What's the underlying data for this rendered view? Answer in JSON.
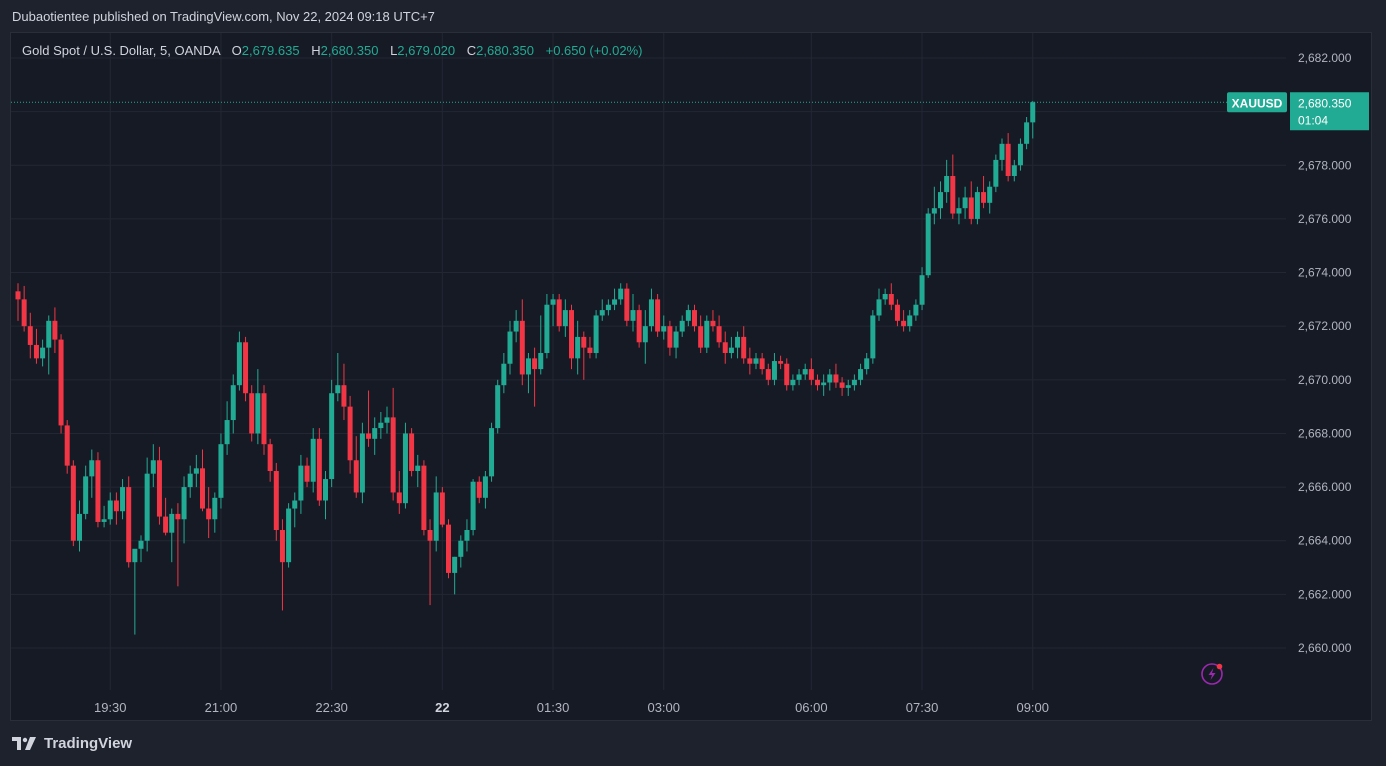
{
  "header": {
    "published": "Dubaotientee published on TradingView.com, Nov 22, 2024 09:18 UTC+7"
  },
  "legend": {
    "instrument": "Gold Spot / U.S. Dollar, 5, OANDA",
    "o_label": "O",
    "o_value": "2,679.635",
    "h_label": "H",
    "h_value": "2,680.350",
    "l_label": "L",
    "l_value": "2,679.020",
    "c_label": "C",
    "c_value": "2,680.350",
    "change": "+0.650 (+0.02%)"
  },
  "price_tag": {
    "symbol": "XAUUSD",
    "price": "2,680.350",
    "countdown": "01:04"
  },
  "footer": {
    "brand": "TradingView"
  },
  "colors": {
    "up": "#22ab94",
    "down": "#f23645",
    "background": "#161a25",
    "grid": "#232733",
    "axis_text": "#b2b5be"
  },
  "icons": [
    "tradingview-logo-icon",
    "lightning-icon"
  ],
  "chart_data": {
    "type": "candlestick",
    "interval": "5",
    "ylim": [
      2658.5,
      2683.5
    ],
    "y_ticks": [
      "2,682.000",
      "2,680.000",
      "2,678.000",
      "2,676.000",
      "2,674.000",
      "2,672.000",
      "2,670.000",
      "2,668.000",
      "2,666.000",
      "2,664.000",
      "2,662.000",
      "2,660.000"
    ],
    "y_tick_values": [
      2682,
      2680,
      2678,
      2676,
      2674,
      2672,
      2670,
      2668,
      2666,
      2664,
      2662,
      2660
    ],
    "x_ticks": [
      {
        "label": "19:30",
        "bar": 15,
        "bold": false
      },
      {
        "label": "21:00",
        "bar": 33,
        "bold": false
      },
      {
        "label": "22:30",
        "bar": 51,
        "bold": false
      },
      {
        "label": "22",
        "bar": 69,
        "bold": true
      },
      {
        "label": "01:30",
        "bar": 87,
        "bold": false
      },
      {
        "label": "03:00",
        "bar": 105,
        "bold": false
      },
      {
        "label": "06:00",
        "bar": 129,
        "bold": false
      },
      {
        "label": "07:30",
        "bar": 147,
        "bold": false
      },
      {
        "label": "09:00",
        "bar": 165,
        "bold": false
      }
    ],
    "last_price": 2680.35,
    "candles": [
      {
        "o": 2673.3,
        "h": 2673.6,
        "l": 2672.2,
        "c": 2673.0
      },
      {
        "o": 2673.0,
        "h": 2673.5,
        "l": 2671.8,
        "c": 2672.0
      },
      {
        "o": 2672.0,
        "h": 2672.5,
        "l": 2670.8,
        "c": 2671.3
      },
      {
        "o": 2671.3,
        "h": 2671.9,
        "l": 2670.6,
        "c": 2670.8
      },
      {
        "o": 2670.8,
        "h": 2671.5,
        "l": 2670.5,
        "c": 2671.2
      },
      {
        "o": 2671.2,
        "h": 2672.4,
        "l": 2670.2,
        "c": 2672.2
      },
      {
        "o": 2672.2,
        "h": 2672.7,
        "l": 2671.0,
        "c": 2671.5
      },
      {
        "o": 2671.5,
        "h": 2671.7,
        "l": 2668.0,
        "c": 2668.3
      },
      {
        "o": 2668.3,
        "h": 2668.5,
        "l": 2666.5,
        "c": 2666.8
      },
      {
        "o": 2666.8,
        "h": 2667.0,
        "l": 2663.8,
        "c": 2664.0
      },
      {
        "o": 2664.0,
        "h": 2665.5,
        "l": 2663.6,
        "c": 2665.0
      },
      {
        "o": 2665.0,
        "h": 2666.8,
        "l": 2664.8,
        "c": 2666.4
      },
      {
        "o": 2666.4,
        "h": 2667.4,
        "l": 2665.6,
        "c": 2667.0
      },
      {
        "o": 2667.0,
        "h": 2667.3,
        "l": 2664.5,
        "c": 2664.7
      },
      {
        "o": 2664.7,
        "h": 2665.3,
        "l": 2664.5,
        "c": 2664.8
      },
      {
        "o": 2664.8,
        "h": 2665.8,
        "l": 2664.6,
        "c": 2665.5
      },
      {
        "o": 2665.5,
        "h": 2665.8,
        "l": 2664.6,
        "c": 2665.1
      },
      {
        "o": 2665.1,
        "h": 2666.3,
        "l": 2664.8,
        "c": 2666.0
      },
      {
        "o": 2666.0,
        "h": 2666.4,
        "l": 2663.0,
        "c": 2663.2
      },
      {
        "o": 2663.2,
        "h": 2663.6,
        "l": 2660.5,
        "c": 2663.7
      },
      {
        "o": 2663.7,
        "h": 2664.2,
        "l": 2663.2,
        "c": 2664.0
      },
      {
        "o": 2664.0,
        "h": 2667.1,
        "l": 2663.6,
        "c": 2666.5
      },
      {
        "o": 2666.5,
        "h": 2667.6,
        "l": 2666.0,
        "c": 2667.0
      },
      {
        "o": 2667.0,
        "h": 2667.5,
        "l": 2664.6,
        "c": 2664.9
      },
      {
        "o": 2664.9,
        "h": 2665.6,
        "l": 2664.2,
        "c": 2664.3
      },
      {
        "o": 2664.3,
        "h": 2665.2,
        "l": 2663.2,
        "c": 2665.0
      },
      {
        "o": 2665.0,
        "h": 2665.4,
        "l": 2662.3,
        "c": 2664.8
      },
      {
        "o": 2664.8,
        "h": 2666.4,
        "l": 2663.9,
        "c": 2666.0
      },
      {
        "o": 2666.0,
        "h": 2666.8,
        "l": 2665.6,
        "c": 2666.5
      },
      {
        "o": 2666.5,
        "h": 2667.2,
        "l": 2666.0,
        "c": 2666.7
      },
      {
        "o": 2666.7,
        "h": 2667.4,
        "l": 2665.1,
        "c": 2665.2
      },
      {
        "o": 2665.2,
        "h": 2666.0,
        "l": 2664.1,
        "c": 2664.8
      },
      {
        "o": 2664.8,
        "h": 2665.8,
        "l": 2664.3,
        "c": 2665.6
      },
      {
        "o": 2665.6,
        "h": 2668.0,
        "l": 2665.2,
        "c": 2667.6
      },
      {
        "o": 2667.6,
        "h": 2669.2,
        "l": 2667.2,
        "c": 2668.5
      },
      {
        "o": 2668.5,
        "h": 2670.2,
        "l": 2668.0,
        "c": 2669.8
      },
      {
        "o": 2669.8,
        "h": 2671.8,
        "l": 2669.6,
        "c": 2671.4
      },
      {
        "o": 2671.4,
        "h": 2671.6,
        "l": 2669.2,
        "c": 2669.5
      },
      {
        "o": 2669.5,
        "h": 2669.8,
        "l": 2667.7,
        "c": 2668.0
      },
      {
        "o": 2668.0,
        "h": 2670.4,
        "l": 2667.6,
        "c": 2669.5
      },
      {
        "o": 2669.5,
        "h": 2669.8,
        "l": 2667.2,
        "c": 2667.6
      },
      {
        "o": 2667.6,
        "h": 2667.8,
        "l": 2666.2,
        "c": 2666.6
      },
      {
        "o": 2666.6,
        "h": 2666.9,
        "l": 2664.0,
        "c": 2664.4
      },
      {
        "o": 2664.4,
        "h": 2664.8,
        "l": 2661.4,
        "c": 2663.2
      },
      {
        "o": 2663.2,
        "h": 2665.4,
        "l": 2663.0,
        "c": 2665.2
      },
      {
        "o": 2665.2,
        "h": 2665.8,
        "l": 2664.5,
        "c": 2665.5
      },
      {
        "o": 2665.5,
        "h": 2667.2,
        "l": 2665.0,
        "c": 2666.8
      },
      {
        "o": 2666.8,
        "h": 2667.1,
        "l": 2666.0,
        "c": 2666.2
      },
      {
        "o": 2666.2,
        "h": 2668.2,
        "l": 2665.8,
        "c": 2667.8
      },
      {
        "o": 2667.8,
        "h": 2668.2,
        "l": 2665.3,
        "c": 2665.5
      },
      {
        "o": 2665.5,
        "h": 2666.6,
        "l": 2664.8,
        "c": 2666.3
      },
      {
        "o": 2666.3,
        "h": 2670.0,
        "l": 2666.0,
        "c": 2669.5
      },
      {
        "o": 2669.5,
        "h": 2671.0,
        "l": 2669.2,
        "c": 2669.8
      },
      {
        "o": 2669.8,
        "h": 2670.6,
        "l": 2668.5,
        "c": 2669.0
      },
      {
        "o": 2669.0,
        "h": 2669.4,
        "l": 2666.5,
        "c": 2667.0
      },
      {
        "o": 2667.0,
        "h": 2667.9,
        "l": 2665.6,
        "c": 2665.8
      },
      {
        "o": 2665.8,
        "h": 2668.4,
        "l": 2665.4,
        "c": 2668.0
      },
      {
        "o": 2668.0,
        "h": 2669.6,
        "l": 2667.5,
        "c": 2667.8
      },
      {
        "o": 2667.8,
        "h": 2668.6,
        "l": 2667.2,
        "c": 2668.2
      },
      {
        "o": 2668.2,
        "h": 2668.8,
        "l": 2667.8,
        "c": 2668.4
      },
      {
        "o": 2668.4,
        "h": 2669.0,
        "l": 2668.0,
        "c": 2668.6
      },
      {
        "o": 2668.6,
        "h": 2669.7,
        "l": 2665.5,
        "c": 2665.8
      },
      {
        "o": 2665.8,
        "h": 2666.6,
        "l": 2665.0,
        "c": 2665.4
      },
      {
        "o": 2665.4,
        "h": 2668.4,
        "l": 2665.2,
        "c": 2668.0
      },
      {
        "o": 2668.0,
        "h": 2668.2,
        "l": 2666.4,
        "c": 2666.6
      },
      {
        "o": 2666.6,
        "h": 2667.2,
        "l": 2666.0,
        "c": 2666.8
      },
      {
        "o": 2666.8,
        "h": 2667.0,
        "l": 2664.2,
        "c": 2664.4
      },
      {
        "o": 2664.4,
        "h": 2664.8,
        "l": 2661.6,
        "c": 2664.0
      },
      {
        "o": 2664.0,
        "h": 2666.4,
        "l": 2663.6,
        "c": 2665.8
      },
      {
        "o": 2665.8,
        "h": 2666.0,
        "l": 2664.5,
        "c": 2664.6
      },
      {
        "o": 2664.6,
        "h": 2664.8,
        "l": 2662.6,
        "c": 2662.8
      },
      {
        "o": 2662.8,
        "h": 2663.4,
        "l": 2662.0,
        "c": 2663.4
      },
      {
        "o": 2663.4,
        "h": 2664.2,
        "l": 2663.0,
        "c": 2664.0
      },
      {
        "o": 2664.0,
        "h": 2664.8,
        "l": 2663.6,
        "c": 2664.4
      },
      {
        "o": 2664.4,
        "h": 2666.3,
        "l": 2664.2,
        "c": 2666.2
      },
      {
        "o": 2666.2,
        "h": 2666.4,
        "l": 2665.4,
        "c": 2665.6
      },
      {
        "o": 2665.6,
        "h": 2666.6,
        "l": 2665.2,
        "c": 2666.4
      },
      {
        "o": 2666.4,
        "h": 2668.4,
        "l": 2666.2,
        "c": 2668.2
      },
      {
        "o": 2668.2,
        "h": 2670.0,
        "l": 2668.0,
        "c": 2669.8
      },
      {
        "o": 2669.8,
        "h": 2671.0,
        "l": 2669.5,
        "c": 2670.6
      },
      {
        "o": 2670.6,
        "h": 2672.2,
        "l": 2670.2,
        "c": 2671.8
      },
      {
        "o": 2671.8,
        "h": 2672.6,
        "l": 2671.4,
        "c": 2672.2
      },
      {
        "o": 2672.2,
        "h": 2673.0,
        "l": 2669.8,
        "c": 2670.2
      },
      {
        "o": 2670.2,
        "h": 2671.0,
        "l": 2669.5,
        "c": 2670.8
      },
      {
        "o": 2670.8,
        "h": 2671.2,
        "l": 2669.0,
        "c": 2670.4
      },
      {
        "o": 2670.4,
        "h": 2672.4,
        "l": 2670.2,
        "c": 2671.0
      },
      {
        "o": 2671.0,
        "h": 2673.2,
        "l": 2670.8,
        "c": 2672.8
      },
      {
        "o": 2672.8,
        "h": 2673.2,
        "l": 2672.0,
        "c": 2673.0
      },
      {
        "o": 2673.0,
        "h": 2673.2,
        "l": 2671.8,
        "c": 2672.0
      },
      {
        "o": 2672.0,
        "h": 2673.0,
        "l": 2671.6,
        "c": 2672.6
      },
      {
        "o": 2672.6,
        "h": 2672.8,
        "l": 2670.4,
        "c": 2670.8
      },
      {
        "o": 2670.8,
        "h": 2672.2,
        "l": 2670.2,
        "c": 2671.6
      },
      {
        "o": 2671.6,
        "h": 2671.8,
        "l": 2670.0,
        "c": 2671.2
      },
      {
        "o": 2671.2,
        "h": 2671.6,
        "l": 2670.8,
        "c": 2671.0
      },
      {
        "o": 2671.0,
        "h": 2672.6,
        "l": 2670.8,
        "c": 2672.4
      },
      {
        "o": 2672.4,
        "h": 2673.0,
        "l": 2672.2,
        "c": 2672.6
      },
      {
        "o": 2672.6,
        "h": 2673.0,
        "l": 2672.4,
        "c": 2672.8
      },
      {
        "o": 2672.8,
        "h": 2673.4,
        "l": 2672.6,
        "c": 2673.0
      },
      {
        "o": 2673.0,
        "h": 2673.6,
        "l": 2672.8,
        "c": 2673.4
      },
      {
        "o": 2673.4,
        "h": 2673.6,
        "l": 2672.0,
        "c": 2672.2
      },
      {
        "o": 2672.2,
        "h": 2673.2,
        "l": 2671.8,
        "c": 2672.6
      },
      {
        "o": 2672.6,
        "h": 2672.8,
        "l": 2671.2,
        "c": 2671.4
      },
      {
        "o": 2671.4,
        "h": 2672.6,
        "l": 2670.6,
        "c": 2672.0
      },
      {
        "o": 2672.0,
        "h": 2673.4,
        "l": 2671.8,
        "c": 2673.0
      },
      {
        "o": 2673.0,
        "h": 2673.2,
        "l": 2671.6,
        "c": 2671.8
      },
      {
        "o": 2671.8,
        "h": 2672.4,
        "l": 2671.5,
        "c": 2672.0
      },
      {
        "o": 2672.0,
        "h": 2672.2,
        "l": 2670.9,
        "c": 2671.2
      },
      {
        "o": 2671.2,
        "h": 2672.0,
        "l": 2670.8,
        "c": 2671.8
      },
      {
        "o": 2671.8,
        "h": 2672.4,
        "l": 2671.6,
        "c": 2672.2
      },
      {
        "o": 2672.2,
        "h": 2672.8,
        "l": 2672.0,
        "c": 2672.6
      },
      {
        "o": 2672.6,
        "h": 2672.8,
        "l": 2671.8,
        "c": 2672.0
      },
      {
        "o": 2672.0,
        "h": 2672.4,
        "l": 2671.0,
        "c": 2671.2
      },
      {
        "o": 2671.2,
        "h": 2672.4,
        "l": 2671.0,
        "c": 2672.2
      },
      {
        "o": 2672.2,
        "h": 2672.6,
        "l": 2671.8,
        "c": 2672.0
      },
      {
        "o": 2672.0,
        "h": 2672.4,
        "l": 2671.2,
        "c": 2671.4
      },
      {
        "o": 2671.4,
        "h": 2671.8,
        "l": 2670.6,
        "c": 2671.0
      },
      {
        "o": 2671.0,
        "h": 2671.6,
        "l": 2670.8,
        "c": 2671.2
      },
      {
        "o": 2671.2,
        "h": 2671.8,
        "l": 2670.8,
        "c": 2671.6
      },
      {
        "o": 2671.6,
        "h": 2672.0,
        "l": 2670.6,
        "c": 2670.8
      },
      {
        "o": 2670.8,
        "h": 2671.2,
        "l": 2670.2,
        "c": 2670.6
      },
      {
        "o": 2670.6,
        "h": 2671.0,
        "l": 2670.4,
        "c": 2670.8
      },
      {
        "o": 2670.8,
        "h": 2671.0,
        "l": 2670.2,
        "c": 2670.4
      },
      {
        "o": 2670.4,
        "h": 2670.6,
        "l": 2669.8,
        "c": 2670.0
      },
      {
        "o": 2670.0,
        "h": 2671.0,
        "l": 2669.8,
        "c": 2670.7
      },
      {
        "o": 2670.7,
        "h": 2670.9,
        "l": 2670.4,
        "c": 2670.6
      },
      {
        "o": 2670.6,
        "h": 2670.8,
        "l": 2669.6,
        "c": 2669.8
      },
      {
        "o": 2669.8,
        "h": 2670.2,
        "l": 2669.6,
        "c": 2670.0
      },
      {
        "o": 2670.0,
        "h": 2670.4,
        "l": 2669.8,
        "c": 2670.2
      },
      {
        "o": 2670.2,
        "h": 2670.6,
        "l": 2670.0,
        "c": 2670.4
      },
      {
        "o": 2670.4,
        "h": 2670.8,
        "l": 2669.8,
        "c": 2670.0
      },
      {
        "o": 2670.0,
        "h": 2670.2,
        "l": 2669.6,
        "c": 2669.8
      },
      {
        "o": 2669.8,
        "h": 2670.2,
        "l": 2669.4,
        "c": 2669.9
      },
      {
        "o": 2669.9,
        "h": 2670.4,
        "l": 2669.6,
        "c": 2670.2
      },
      {
        "o": 2670.2,
        "h": 2670.6,
        "l": 2669.7,
        "c": 2669.9
      },
      {
        "o": 2669.9,
        "h": 2670.1,
        "l": 2669.4,
        "c": 2669.7
      },
      {
        "o": 2669.7,
        "h": 2670.0,
        "l": 2669.4,
        "c": 2669.8
      },
      {
        "o": 2669.8,
        "h": 2670.2,
        "l": 2669.6,
        "c": 2670.0
      },
      {
        "o": 2670.0,
        "h": 2670.6,
        "l": 2669.8,
        "c": 2670.4
      },
      {
        "o": 2670.4,
        "h": 2671.0,
        "l": 2670.2,
        "c": 2670.8
      },
      {
        "o": 2670.8,
        "h": 2672.6,
        "l": 2670.6,
        "c": 2672.4
      },
      {
        "o": 2672.4,
        "h": 2673.4,
        "l": 2672.2,
        "c": 2673.0
      },
      {
        "o": 2673.0,
        "h": 2673.4,
        "l": 2672.8,
        "c": 2673.2
      },
      {
        "o": 2673.2,
        "h": 2673.6,
        "l": 2672.6,
        "c": 2672.8
      },
      {
        "o": 2672.8,
        "h": 2673.0,
        "l": 2672.0,
        "c": 2672.2
      },
      {
        "o": 2672.2,
        "h": 2672.6,
        "l": 2671.8,
        "c": 2672.0
      },
      {
        "o": 2672.0,
        "h": 2672.6,
        "l": 2671.8,
        "c": 2672.4
      },
      {
        "o": 2672.4,
        "h": 2673.0,
        "l": 2672.2,
        "c": 2672.8
      },
      {
        "o": 2672.8,
        "h": 2674.2,
        "l": 2672.6,
        "c": 2673.9
      },
      {
        "o": 2673.9,
        "h": 2676.4,
        "l": 2673.8,
        "c": 2676.2
      },
      {
        "o": 2676.2,
        "h": 2677.2,
        "l": 2675.8,
        "c": 2676.4
      },
      {
        "o": 2676.4,
        "h": 2677.4,
        "l": 2676.0,
        "c": 2677.0
      },
      {
        "o": 2677.0,
        "h": 2678.2,
        "l": 2676.6,
        "c": 2677.6
      },
      {
        "o": 2677.6,
        "h": 2678.4,
        "l": 2676.0,
        "c": 2676.2
      },
      {
        "o": 2676.2,
        "h": 2676.8,
        "l": 2675.8,
        "c": 2676.4
      },
      {
        "o": 2676.4,
        "h": 2677.2,
        "l": 2676.0,
        "c": 2676.8
      },
      {
        "o": 2676.8,
        "h": 2677.4,
        "l": 2675.8,
        "c": 2676.0
      },
      {
        "o": 2676.0,
        "h": 2677.2,
        "l": 2675.8,
        "c": 2677.0
      },
      {
        "o": 2677.0,
        "h": 2677.6,
        "l": 2676.4,
        "c": 2676.6
      },
      {
        "o": 2676.6,
        "h": 2677.4,
        "l": 2676.2,
        "c": 2677.2
      },
      {
        "o": 2677.2,
        "h": 2678.4,
        "l": 2677.0,
        "c": 2678.2
      },
      {
        "o": 2678.2,
        "h": 2679.0,
        "l": 2677.8,
        "c": 2678.8
      },
      {
        "o": 2678.8,
        "h": 2679.2,
        "l": 2677.4,
        "c": 2677.6
      },
      {
        "o": 2677.6,
        "h": 2678.2,
        "l": 2677.4,
        "c": 2678.0
      },
      {
        "o": 2678.0,
        "h": 2679.0,
        "l": 2677.8,
        "c": 2678.8
      },
      {
        "o": 2678.8,
        "h": 2679.8,
        "l": 2678.6,
        "c": 2679.6
      },
      {
        "o": 2679.6,
        "h": 2680.4,
        "l": 2679.0,
        "c": 2680.35
      }
    ]
  }
}
